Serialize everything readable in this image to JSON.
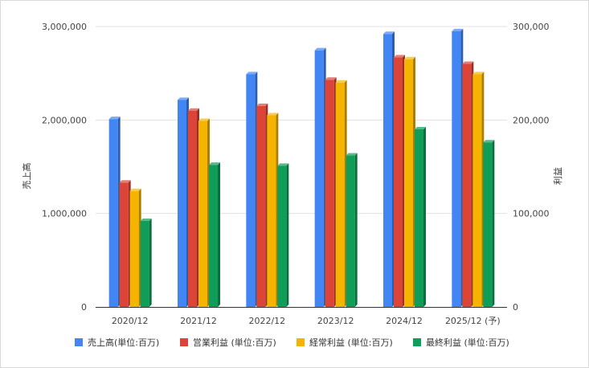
{
  "chart_data": {
    "type": "bar",
    "categories": [
      "2020/12",
      "2021/12",
      "2022/12",
      "2023/12",
      "2024/12",
      "2025/12 (予)"
    ],
    "ylabel_left": "売上高",
    "ylabel_right": "利益",
    "ylim_left": [
      0,
      3000000
    ],
    "ylim_right": [
      0,
      300000
    ],
    "yticks_left": [
      "0",
      "1,000,000",
      "2,000,000",
      "3,000,000"
    ],
    "yticks_right": [
      "0",
      "100,000",
      "200,000",
      "300,000"
    ],
    "grid": true,
    "legend_position": "bottom",
    "series": [
      {
        "name": "売上高(単位:百万)",
        "axis": "left",
        "color": "#4285f4",
        "values": [
          2010000,
          2215000,
          2490000,
          2745000,
          2920000,
          2950000
        ]
      },
      {
        "name": "営業利益 (単位:百万)",
        "axis": "right",
        "color": "#db4437",
        "values": [
          133000,
          210000,
          215000,
          243000,
          267000,
          260000
        ]
      },
      {
        "name": "経常利益 (単位:百万)",
        "axis": "right",
        "color": "#f4b400",
        "values": [
          124000,
          199000,
          205000,
          240000,
          265000,
          249000
        ]
      },
      {
        "name": "最終利益 (単位:百万)",
        "axis": "right",
        "color": "#0f9d58",
        "values": [
          92000,
          152000,
          151000,
          162000,
          190000,
          176000
        ]
      }
    ]
  }
}
